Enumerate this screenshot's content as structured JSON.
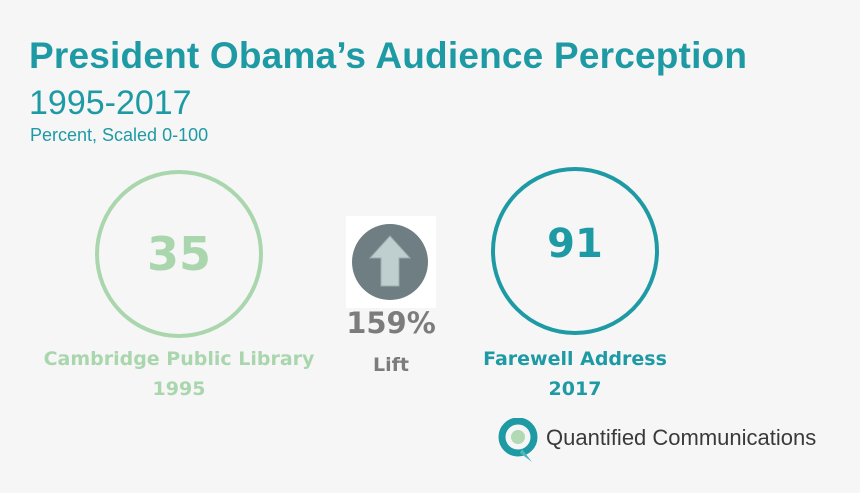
{
  "chart_data": {
    "type": "comparison",
    "title": "President Obama’s Audience Perception",
    "subtitle": "1995-2017",
    "note": "Percent, Scaled 0-100",
    "items": [
      {
        "value": "35",
        "label": "Cambridge Public Library",
        "year": "1995",
        "color": "#a9d6ad"
      },
      {
        "value": "91",
        "label": "Farewell Address",
        "year": "2017",
        "color": "#1e9aa4"
      }
    ],
    "lift": {
      "percent": "159%",
      "label": "Lift",
      "icon": "up-arrow-icon"
    }
  },
  "brand": {
    "name": "Quantified Communications",
    "icon": "quantified-logo-icon"
  },
  "colors": {
    "accent": "#1e9aa4",
    "light_green": "#a9d6ad",
    "gray": "#7c7c7c"
  }
}
